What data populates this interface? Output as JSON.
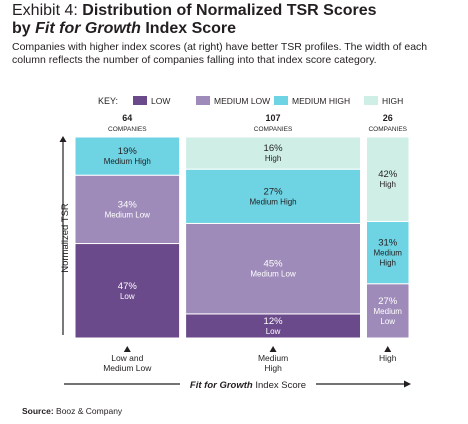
{
  "title": {
    "exhibit": "Exhibit 4:",
    "line1": "Distribution of Normalized TSR Scores",
    "by": "by",
    "brand": "Fit for Growth",
    "rest": "Index Score"
  },
  "subtitle": "Companies with higher index scores (at right) have better TSR profiles. The width of each column reflects the number of companies falling into that index score category.",
  "source_label": "Source:",
  "source_value": "Booz & Company",
  "colors": {
    "low": "#6b4a8b",
    "medium_low": "#9e8bb9",
    "medium_high": "#6ed3e3",
    "high": "#cfeee6"
  },
  "chart_data": {
    "type": "mekko",
    "key_label": "KEY:",
    "legend": [
      {
        "key": "low",
        "label": "LOW"
      },
      {
        "key": "medium_low",
        "label": "MEDIUM LOW"
      },
      {
        "key": "medium_high",
        "label": "MEDIUM HIGH"
      },
      {
        "key": "high",
        "label": "HIGH"
      }
    ],
    "ylabel": "Normalized TSR",
    "xlabel_brand": "Fit for Growth",
    "xlabel_rest": "Index Score",
    "companies_label": "COMPANIES",
    "columns": [
      {
        "category_lines": [
          "Low and",
          "Medium Low"
        ],
        "companies": 64,
        "segments": [
          {
            "key": "low",
            "value": 47,
            "label": "47%",
            "name": "Low"
          },
          {
            "key": "medium_low",
            "value": 34,
            "label": "34%",
            "name": "Medium Low"
          },
          {
            "key": "medium_high",
            "value": 19,
            "label": "19%",
            "name": "Medium High"
          }
        ]
      },
      {
        "category_lines": [
          "Medium",
          "High"
        ],
        "companies": 107,
        "segments": [
          {
            "key": "low",
            "value": 12,
            "label": "12%",
            "name": "Low"
          },
          {
            "key": "medium_low",
            "value": 45,
            "label": "45%",
            "name": "Medium Low"
          },
          {
            "key": "medium_high",
            "value": 27,
            "label": "27%",
            "name": "Medium High"
          },
          {
            "key": "high",
            "value": 16,
            "label": "16%",
            "name": "High"
          }
        ]
      },
      {
        "category_lines": [
          "High"
        ],
        "companies": 26,
        "segments": [
          {
            "key": "medium_low",
            "value": 27,
            "label": "27%",
            "name_lines": [
              "Medium",
              "Low"
            ]
          },
          {
            "key": "medium_high",
            "value": 31,
            "label": "31%",
            "name_lines": [
              "Medium",
              "High"
            ]
          },
          {
            "key": "high",
            "value": 42,
            "label": "42%",
            "name": "High"
          }
        ]
      }
    ]
  }
}
